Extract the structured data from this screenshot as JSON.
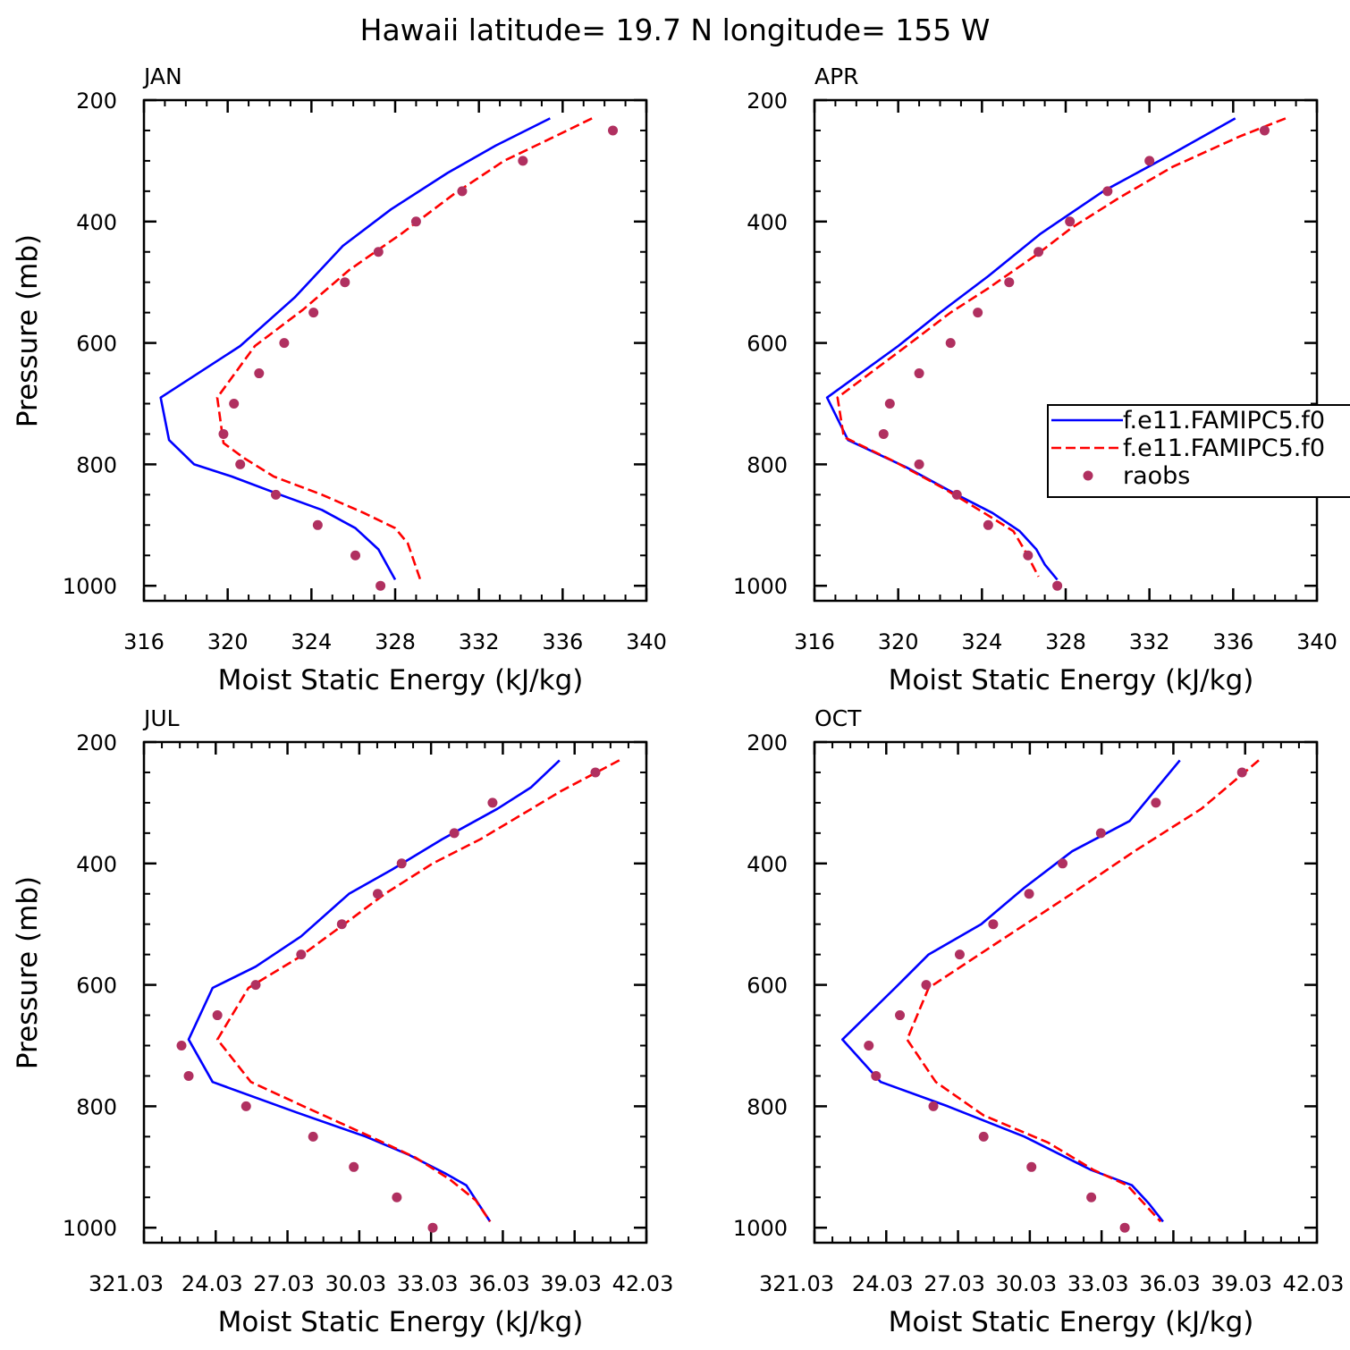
{
  "title": "Hawaii  latitude= 19.7 N longitude= 155 W",
  "legend": {
    "entries": [
      {
        "label": "f.e11.FAMIPC5.f0",
        "style": "solid",
        "color": "#0000ff"
      },
      {
        "label": "f.e11.FAMIPC5.f0",
        "style": "dashed",
        "color": "#ff0000"
      },
      {
        "label": "raobs",
        "style": "marker",
        "color": "#b03060"
      }
    ]
  },
  "chart_data": [
    {
      "type": "line",
      "title": "JAN",
      "xlabel": "Moist Static Energy (kJ/kg)",
      "ylabel": "Pressure (mb)",
      "xlim": [
        316,
        340
      ],
      "ylim": [
        1000,
        200
      ],
      "xticks": [
        316,
        320,
        324,
        328,
        332,
        336,
        340
      ],
      "xtick_labels": [
        "316",
        "320",
        "324",
        "328",
        "332",
        "336",
        "340"
      ],
      "yticks": [
        200,
        400,
        600,
        800,
        1000
      ],
      "ytick_labels": [
        "200",
        "400",
        "600",
        "800",
        "1000"
      ],
      "series": [
        {
          "name": "f.e11.FAMIPC5.f0 (solid)",
          "style": "solid",
          "color": "#0000ff",
          "points": [
            [
              335.4,
              230
            ],
            [
              332.8,
              275
            ],
            [
              330.5,
              320
            ],
            [
              327.8,
              380
            ],
            [
              325.5,
              440
            ],
            [
              323.2,
              525
            ],
            [
              320.6,
              605
            ],
            [
              316.8,
              690
            ],
            [
              317.2,
              760
            ],
            [
              318.4,
              800
            ],
            [
              320.2,
              820
            ],
            [
              322.5,
              850
            ],
            [
              324.5,
              875
            ],
            [
              326.1,
              905
            ],
            [
              327.2,
              940
            ],
            [
              328.0,
              990
            ]
          ]
        },
        {
          "name": "f.e11.FAMIPC5.f0 (dashed)",
          "style": "dashed",
          "color": "#ff0000",
          "points": [
            [
              337.4,
              230
            ],
            [
              335.5,
              262
            ],
            [
              333.2,
              300
            ],
            [
              330.8,
              355
            ],
            [
              328.3,
              420
            ],
            [
              325.8,
              480
            ],
            [
              323.6,
              545
            ],
            [
              321.3,
              605
            ],
            [
              319.5,
              690
            ],
            [
              319.8,
              765
            ],
            [
              320.8,
              790
            ],
            [
              322.2,
              820
            ],
            [
              324.5,
              850
            ],
            [
              326.5,
              880
            ],
            [
              328.0,
              905
            ],
            [
              328.6,
              930
            ],
            [
              329.2,
              990
            ]
          ]
        },
        {
          "name": "raobs",
          "style": "marker",
          "color": "#b03060",
          "points": [
            [
              338.4,
              250
            ],
            [
              334.1,
              300
            ],
            [
              331.2,
              350
            ],
            [
              329.0,
              400
            ],
            [
              327.2,
              450
            ],
            [
              325.6,
              500
            ],
            [
              324.1,
              550
            ],
            [
              322.7,
              600
            ],
            [
              321.5,
              650
            ],
            [
              320.3,
              700
            ],
            [
              319.8,
              750
            ],
            [
              320.6,
              800
            ],
            [
              322.3,
              850
            ],
            [
              324.3,
              900
            ],
            [
              326.1,
              950
            ],
            [
              327.3,
              1000
            ]
          ]
        }
      ]
    },
    {
      "type": "line",
      "title": "APR",
      "xlabel": "Moist Static Energy (kJ/kg)",
      "ylabel": "",
      "xlim": [
        316,
        340
      ],
      "ylim": [
        1000,
        200
      ],
      "xticks": [
        316,
        320,
        324,
        328,
        332,
        336,
        340
      ],
      "xtick_labels": [
        "316",
        "320",
        "324",
        "328",
        "332",
        "336",
        "340"
      ],
      "yticks": [
        200,
        400,
        600,
        800,
        1000
      ],
      "ytick_labels": [
        "200",
        "400",
        "600",
        "800",
        "1000"
      ],
      "series": [
        {
          "name": "f.e11.FAMIPC5.f0 (solid)",
          "style": "solid",
          "color": "#0000ff",
          "points": [
            [
              336.1,
              230
            ],
            [
              333.0,
              290
            ],
            [
              329.8,
              350
            ],
            [
              326.8,
              420
            ],
            [
              324.3,
              490
            ],
            [
              322.0,
              550
            ],
            [
              320.0,
              605
            ],
            [
              316.6,
              690
            ],
            [
              317.6,
              760
            ],
            [
              320.4,
              805
            ],
            [
              322.8,
              850
            ],
            [
              324.5,
              880
            ],
            [
              325.8,
              910
            ],
            [
              326.6,
              940
            ],
            [
              327.0,
              965
            ],
            [
              327.6,
              990
            ]
          ]
        },
        {
          "name": "f.e11.FAMIPC5.f0 (dashed)",
          "style": "dashed",
          "color": "#ff0000",
          "points": [
            [
              338.5,
              230
            ],
            [
              336.3,
              260
            ],
            [
              333.1,
              310
            ],
            [
              330.6,
              360
            ],
            [
              328.3,
              410
            ],
            [
              326.6,
              455
            ],
            [
              324.3,
              510
            ],
            [
              322.5,
              550
            ],
            [
              320.4,
              605
            ],
            [
              317.1,
              690
            ],
            [
              317.4,
              755
            ],
            [
              319.8,
              795
            ],
            [
              322.2,
              840
            ],
            [
              324.1,
              880
            ],
            [
              325.5,
              910
            ],
            [
              326.1,
              945
            ],
            [
              326.7,
              985
            ]
          ]
        },
        {
          "name": "raobs",
          "style": "marker",
          "color": "#b03060",
          "points": [
            [
              337.5,
              250
            ],
            [
              332.0,
              300
            ],
            [
              330.0,
              350
            ],
            [
              328.2,
              400
            ],
            [
              326.7,
              450
            ],
            [
              325.3,
              500
            ],
            [
              323.8,
              550
            ],
            [
              322.5,
              600
            ],
            [
              321.0,
              650
            ],
            [
              319.6,
              700
            ],
            [
              319.3,
              750
            ],
            [
              321.0,
              800
            ],
            [
              322.8,
              850
            ],
            [
              324.3,
              900
            ],
            [
              326.2,
              950
            ],
            [
              327.6,
              1000
            ]
          ]
        }
      ]
    },
    {
      "type": "line",
      "title": "JUL",
      "xlabel": "Moist Static Energy (kJ/kg)",
      "ylabel": "Pressure (mb)",
      "xlim": [
        321.03,
        342.03
      ],
      "ylim": [
        1000,
        200
      ],
      "xticks": [
        321.03,
        324.03,
        327.03,
        330.03,
        333.03,
        336.03,
        339.03,
        342.03
      ],
      "xtick_labels": [
        "321.03",
        "24.03",
        "27.03",
        "30.03",
        "33.03",
        "36.03",
        "39.03",
        "42.03"
      ],
      "yticks": [
        200,
        400,
        600,
        800,
        1000
      ],
      "ytick_labels": [
        "200",
        "400",
        "600",
        "800",
        "1000"
      ],
      "series": [
        {
          "name": "f.e11.FAMIPC5.f0 (solid)",
          "style": "solid",
          "color": "#0000ff",
          "points": [
            [
              338.4,
              230
            ],
            [
              337.2,
              275
            ],
            [
              335.8,
              310
            ],
            [
              333.5,
              360
            ],
            [
              331.4,
              410
            ],
            [
              329.6,
              450
            ],
            [
              327.6,
              520
            ],
            [
              325.7,
              570
            ],
            [
              323.9,
              605
            ],
            [
              322.9,
              690
            ],
            [
              323.9,
              760
            ],
            [
              327.4,
              810
            ],
            [
              330.3,
              850
            ],
            [
              332.1,
              880
            ],
            [
              333.6,
              910
            ],
            [
              334.5,
              930
            ],
            [
              335.5,
              990
            ]
          ]
        },
        {
          "name": "f.e11.FAMIPC5.f0 (dashed)",
          "style": "dashed",
          "color": "#ff0000",
          "points": [
            [
              340.9,
              230
            ],
            [
              338.5,
              280
            ],
            [
              336.8,
              320
            ],
            [
              335.1,
              360
            ],
            [
              333.1,
              400
            ],
            [
              331.1,
              450
            ],
            [
              329.4,
              500
            ],
            [
              327.5,
              555
            ],
            [
              325.4,
              605
            ],
            [
              324.1,
              690
            ],
            [
              325.5,
              760
            ],
            [
              327.7,
              800
            ],
            [
              330.5,
              850
            ],
            [
              332.4,
              885
            ],
            [
              333.8,
              920
            ],
            [
              334.9,
              955
            ],
            [
              335.5,
              990
            ]
          ]
        },
        {
          "name": "raobs",
          "style": "marker",
          "color": "#b03060",
          "points": [
            [
              339.9,
              250
            ],
            [
              335.6,
              300
            ],
            [
              334.0,
              350
            ],
            [
              331.8,
              400
            ],
            [
              330.8,
              450
            ],
            [
              329.3,
              500
            ],
            [
              327.6,
              550
            ],
            [
              325.7,
              600
            ],
            [
              324.1,
              650
            ],
            [
              322.6,
              700
            ],
            [
              322.9,
              750
            ],
            [
              325.3,
              800
            ],
            [
              328.1,
              850
            ],
            [
              329.8,
              900
            ],
            [
              331.6,
              950
            ],
            [
              333.1,
              1000
            ]
          ]
        }
      ]
    },
    {
      "type": "line",
      "title": "OCT",
      "xlabel": "Moist Static Energy (kJ/kg)",
      "ylabel": "",
      "xlim": [
        321.03,
        342.03
      ],
      "ylim": [
        1000,
        200
      ],
      "xticks": [
        321.03,
        324.03,
        327.03,
        330.03,
        333.03,
        336.03,
        339.03,
        342.03
      ],
      "xtick_labels": [
        "321.03",
        "24.03",
        "27.03",
        "30.03",
        "33.03",
        "36.03",
        "39.03",
        "42.03"
      ],
      "yticks": [
        200,
        400,
        600,
        800,
        1000
      ],
      "ytick_labels": [
        "200",
        "400",
        "600",
        "800",
        "1000"
      ],
      "series": [
        {
          "name": "f.e11.FAMIPC5.f0 (solid)",
          "style": "solid",
          "color": "#0000ff",
          "points": [
            [
              336.3,
              230
            ],
            [
              334.2,
              330
            ],
            [
              331.8,
              380
            ],
            [
              329.8,
              440
            ],
            [
              328.0,
              500
            ],
            [
              325.8,
              550
            ],
            [
              324.4,
              605
            ],
            [
              322.2,
              690
            ],
            [
              323.8,
              760
            ],
            [
              326.6,
              800
            ],
            [
              329.8,
              850
            ],
            [
              332.6,
              905
            ],
            [
              334.3,
              930
            ],
            [
              335.0,
              960
            ],
            [
              335.6,
              990
            ]
          ]
        },
        {
          "name": "f.e11.FAMIPC5.f0 (dashed)",
          "style": "dashed",
          "color": "#ff0000",
          "points": [
            [
              339.6,
              230
            ],
            [
              337.2,
              310
            ],
            [
              334.4,
              380
            ],
            [
              331.4,
              460
            ],
            [
              328.3,
              540
            ],
            [
              325.8,
              605
            ],
            [
              324.9,
              690
            ],
            [
              326.1,
              760
            ],
            [
              328.1,
              815
            ],
            [
              330.8,
              860
            ],
            [
              332.7,
              905
            ],
            [
              334.1,
              930
            ],
            [
              335.5,
              990
            ]
          ]
        },
        {
          "name": "raobs",
          "style": "marker",
          "color": "#b03060",
          "points": [
            [
              338.9,
              250
            ],
            [
              335.3,
              300
            ],
            [
              333.0,
              350
            ],
            [
              331.4,
              400
            ],
            [
              330.0,
              450
            ],
            [
              328.5,
              500
            ],
            [
              327.1,
              550
            ],
            [
              325.7,
              600
            ],
            [
              324.6,
              650
            ],
            [
              323.3,
              700
            ],
            [
              323.6,
              750
            ],
            [
              326.0,
              800
            ],
            [
              328.1,
              850
            ],
            [
              330.1,
              900
            ],
            [
              332.6,
              950
            ],
            [
              334.0,
              1000
            ]
          ]
        }
      ]
    }
  ]
}
